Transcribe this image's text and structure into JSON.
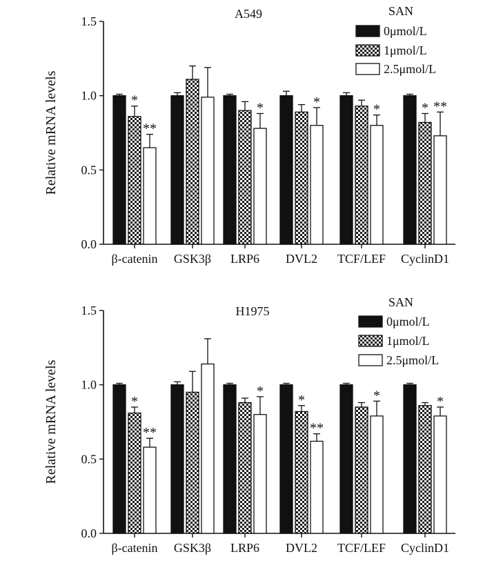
{
  "chart_data": [
    {
      "type": "bar",
      "title": "A549",
      "ylabel": "Relative mRNA levels",
      "xlabel": "",
      "ylim": [
        0,
        1.5
      ],
      "yticks": [
        "0.0",
        "0.5",
        "1.0",
        "1.5"
      ],
      "yticks_values": [
        0,
        0.5,
        1.0,
        1.5
      ],
      "categories": [
        "β-catenin",
        "GSK3β",
        "LRP6",
        "DVL2",
        "TCF/LEF",
        "CyclinD1"
      ],
      "legend_title": "SAN",
      "legend_position": "top-right",
      "series": [
        {
          "name": "0μmol/L",
          "pattern": "solid",
          "values": [
            1.0,
            1.0,
            1.0,
            1.0,
            1.0,
            1.0
          ],
          "errors": [
            0.01,
            0.02,
            0.01,
            0.03,
            0.02,
            0.01
          ],
          "significance": [
            "",
            "",
            "",
            "",
            "",
            ""
          ]
        },
        {
          "name": "1μmol/L",
          "pattern": "checker",
          "values": [
            0.86,
            1.11,
            0.9,
            0.89,
            0.93,
            0.82
          ],
          "errors": [
            0.07,
            0.09,
            0.06,
            0.05,
            0.04,
            0.06
          ],
          "significance": [
            "*",
            "",
            "",
            "",
            "",
            "*"
          ]
        },
        {
          "name": "2.5μmol/L",
          "pattern": "open",
          "values": [
            0.65,
            0.99,
            0.78,
            0.8,
            0.8,
            0.73
          ],
          "errors": [
            0.09,
            0.2,
            0.1,
            0.12,
            0.07,
            0.16
          ],
          "significance": [
            "**",
            "",
            "*",
            "*",
            "*",
            "**"
          ]
        }
      ]
    },
    {
      "type": "bar",
      "title": "H1975",
      "ylabel": "Relative mRNA levels",
      "xlabel": "",
      "ylim": [
        0,
        1.5
      ],
      "yticks": [
        "0.0",
        "0.5",
        "1.0",
        "1.5"
      ],
      "yticks_values": [
        0,
        0.5,
        1.0,
        1.5
      ],
      "categories": [
        "β-catenin",
        "GSK3β",
        "LRP6",
        "DVL2",
        "TCF/LEF",
        "CyclinD1"
      ],
      "legend_title": "SAN",
      "legend_position": "top-right",
      "series": [
        {
          "name": "0μmol/L",
          "pattern": "solid",
          "values": [
            1.0,
            1.0,
            1.0,
            1.0,
            1.0,
            1.0
          ],
          "errors": [
            0.01,
            0.02,
            0.01,
            0.01,
            0.01,
            0.01
          ],
          "significance": [
            "",
            "",
            "",
            "",
            "",
            ""
          ]
        },
        {
          "name": "1μmol/L",
          "pattern": "checker",
          "values": [
            0.81,
            0.95,
            0.88,
            0.82,
            0.85,
            0.86
          ],
          "errors": [
            0.04,
            0.14,
            0.03,
            0.04,
            0.03,
            0.02
          ],
          "significance": [
            "*",
            "",
            "",
            "*",
            "",
            ""
          ]
        },
        {
          "name": "2.5μmol/L",
          "pattern": "open",
          "values": [
            0.58,
            1.14,
            0.8,
            0.62,
            0.79,
            0.79
          ],
          "errors": [
            0.06,
            0.17,
            0.12,
            0.05,
            0.1,
            0.06
          ],
          "significance": [
            "**",
            "",
            "*",
            "**",
            "*",
            "*"
          ]
        }
      ]
    }
  ]
}
